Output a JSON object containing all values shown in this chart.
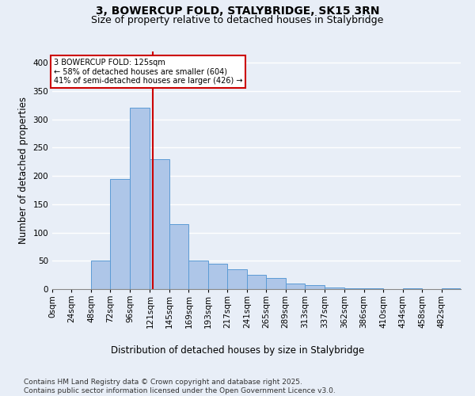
{
  "title_line1": "3, BOWERCUP FOLD, STALYBRIDGE, SK15 3RN",
  "title_line2": "Size of property relative to detached houses in Stalybridge",
  "xlabel": "Distribution of detached houses by size in Stalybridge",
  "ylabel": "Number of detached properties",
  "bin_labels": [
    "0sqm",
    "24sqm",
    "48sqm",
    "72sqm",
    "96sqm",
    "121sqm",
    "145sqm",
    "169sqm",
    "193sqm",
    "217sqm",
    "241sqm",
    "265sqm",
    "289sqm",
    "313sqm",
    "337sqm",
    "362sqm",
    "386sqm",
    "410sqm",
    "434sqm",
    "458sqm",
    "482sqm"
  ],
  "bin_edges": [
    0,
    24,
    48,
    72,
    96,
    121,
    145,
    169,
    193,
    217,
    241,
    265,
    289,
    313,
    337,
    362,
    386,
    410,
    434,
    458,
    482,
    506
  ],
  "bar_values": [
    0,
    0,
    50,
    195,
    320,
    230,
    115,
    50,
    45,
    35,
    25,
    20,
    10,
    7,
    3,
    2,
    2,
    0,
    2,
    0,
    2
  ],
  "bar_color": "#aec6e8",
  "bar_edge_color": "#5b9bd5",
  "background_color": "#e8eef7",
  "grid_color": "#ffffff",
  "vline_x": 125,
  "vline_color": "#cc0000",
  "annotation_text": "3 BOWERCUP FOLD: 125sqm\n← 58% of detached houses are smaller (604)\n41% of semi-detached houses are larger (426) →",
  "annotation_box_color": "#ffffff",
  "annotation_box_edge": "#cc0000",
  "ylim": [
    0,
    420
  ],
  "yticks": [
    0,
    50,
    100,
    150,
    200,
    250,
    300,
    350,
    400
  ],
  "footer_text": "Contains HM Land Registry data © Crown copyright and database right 2025.\nContains public sector information licensed under the Open Government Licence v3.0.",
  "title_fontsize": 10,
  "subtitle_fontsize": 9,
  "axis_label_fontsize": 8.5,
  "tick_fontsize": 7.5,
  "footer_fontsize": 6.5
}
